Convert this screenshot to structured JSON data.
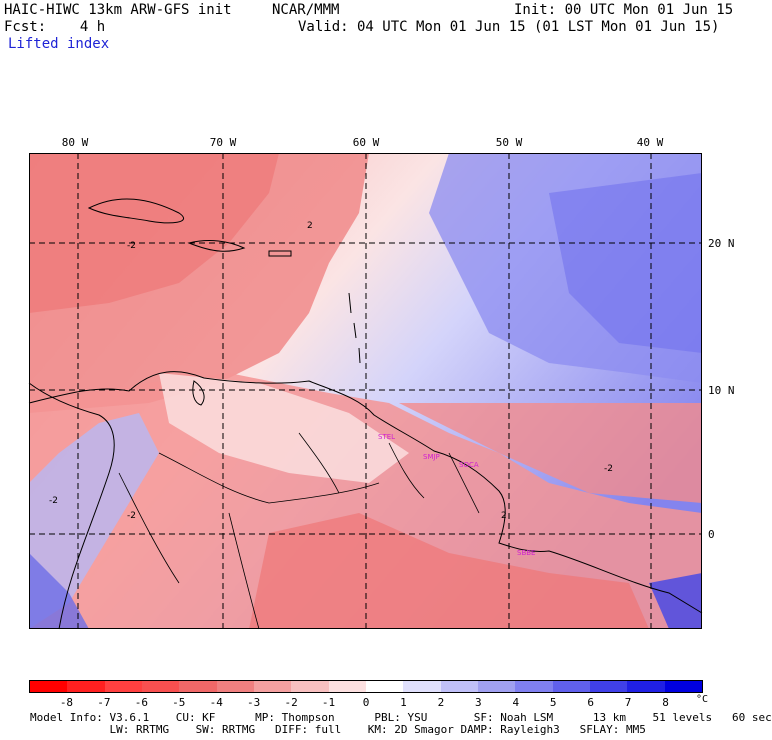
{
  "header": {
    "title": "HAIC-HIWC 13km ARW-GFS init",
    "org": "NCAR/MMM",
    "init": "Init: 00 UTC Mon 01 Jun 15",
    "fcst": "Fcst:    4 h",
    "valid": "Valid: 04 UTC Mon 01 Jun 15 (01 LST Mon 01 Jun 15)",
    "field": "Lifted index"
  },
  "map": {
    "longitude_labels": [
      "80 W",
      "70 W",
      "60 W",
      "50 W",
      "40 W"
    ],
    "latitude_labels": [
      "20 N",
      "10 N",
      "0"
    ],
    "contour_labels": [
      "2",
      "-2",
      "-2",
      "2",
      "-2",
      "-2"
    ],
    "stations": [
      "STEL",
      "SMJP",
      "SOCA",
      "SBBE"
    ],
    "colors": {
      "ocean_positive": "#7878ee",
      "land_negative": "#f07070",
      "neutral": "#ffffff",
      "station": "#d020d0"
    }
  },
  "colorbar": {
    "ticks": [
      "-8",
      "-7",
      "-6",
      "-5",
      "-4",
      "-3",
      "-2",
      "-1",
      "0",
      "1",
      "2",
      "3",
      "4",
      "5",
      "6",
      "7",
      "8"
    ],
    "unit": "°C",
    "colors": [
      "#ff0000",
      "#ff2020",
      "#ff4040",
      "#f85050",
      "#f06868",
      "#f08080",
      "#f4a0a0",
      "#f8c0c0",
      "#fce0e0",
      "#ffffff",
      "#e0e0fc",
      "#c0c0f8",
      "#a0a0f0",
      "#8080f0",
      "#6060ec",
      "#4040e8",
      "#2020e4",
      "#0000e0"
    ]
  },
  "footer": {
    "line1": "Model Info: V3.6.1    CU: KF      MP: Thompson      PBL: YSU       SF: Noah LSM      13 km    51 levels   60 sec",
    "line2": "            LW: RRTMG    SW: RRTMG   DIFF: full    KM: 2D Smagor DAMP: Rayleigh3   SFLAY: MM5"
  }
}
